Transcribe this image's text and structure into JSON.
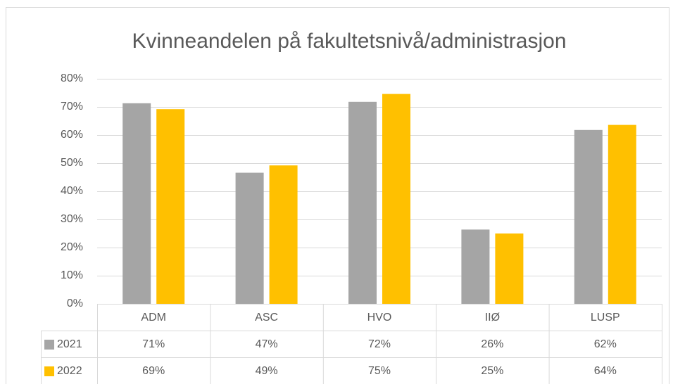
{
  "chart_data": {
    "type": "bar",
    "title": "Kvinneandelen på fakultetsnivå/administrasjon",
    "categories": [
      "ADM",
      "ASC",
      "HVO",
      "IIØ",
      "LUSP"
    ],
    "series": [
      {
        "name": "2021",
        "color": "#a5a5a5",
        "values": [
          71.3,
          46.6,
          71.8,
          26.4,
          61.8
        ],
        "value_labels": [
          "71%",
          "47%",
          "72%",
          "26%",
          "62%"
        ]
      },
      {
        "name": "2022",
        "color": "#ffc000",
        "values": [
          69.2,
          49.2,
          74.6,
          25.0,
          63.6
        ],
        "value_labels": [
          "69%",
          "49%",
          "75%",
          "25%",
          "64%"
        ]
      }
    ],
    "ylim": [
      0,
      80
    ],
    "yticks": [
      {
        "value": 0,
        "label": "0%"
      },
      {
        "value": 10,
        "label": "10%"
      },
      {
        "value": 20,
        "label": "20%"
      },
      {
        "value": 30,
        "label": "30%"
      },
      {
        "value": 40,
        "label": "40%"
      },
      {
        "value": 50,
        "label": "50%"
      },
      {
        "value": 60,
        "label": "60%"
      },
      {
        "value": 70,
        "label": "70%"
      },
      {
        "value": 80,
        "label": "80%"
      }
    ],
    "grid": true,
    "data_table": true
  }
}
